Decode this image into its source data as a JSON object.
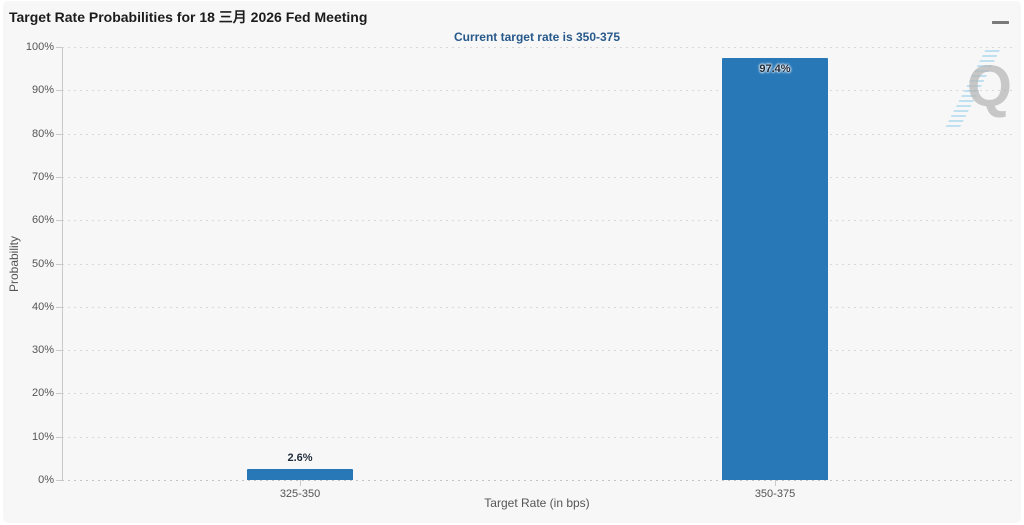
{
  "card": {
    "menu_icon": "hamburger-menu-icon"
  },
  "watermark": {
    "letter": "Q"
  },
  "chart_data": {
    "type": "bar",
    "title": "Target Rate Probabilities for 18 三月 2026 Fed Meeting",
    "subtitle": "Current target rate is 350-375",
    "categories": [
      "325-350",
      "350-375"
    ],
    "values": [
      2.6,
      97.4
    ],
    "point_labels": [
      {
        "text": "2.6%",
        "position": "above"
      },
      {
        "text": "97.4%",
        "position": "inside"
      }
    ],
    "xlabel": "Target Rate (in bps)",
    "ylabel": "Probability",
    "ylim": [
      0,
      100
    ],
    "ytick_step": 10,
    "ytick_suffix": "%",
    "grid": "horizontal-dotted",
    "legend_position": "none",
    "colors": {
      "bar": "#2878b8",
      "subtitle_text": "#27598b",
      "background": "#f7f7f7",
      "axis": "#c9c9c9",
      "tick_text": "#555555"
    }
  }
}
